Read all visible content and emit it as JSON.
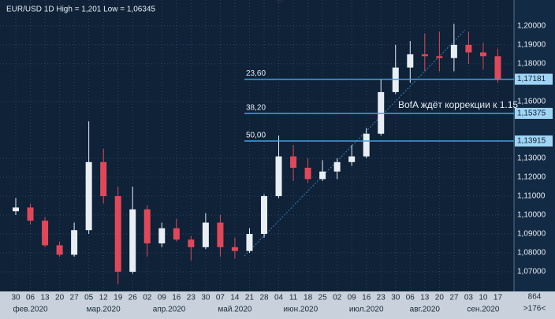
{
  "chart_data": {
    "type": "candlestick",
    "title": "EUR/USD 1D High = 1,201 Low = 1,06345",
    "annotation": "BofA ждёт коррекции к 1.15",
    "categories": [
      "30",
      "06",
      "13",
      "20",
      "27",
      "05",
      "12",
      "19",
      "26",
      "02",
      "09",
      "16",
      "23",
      "30",
      "07",
      "14",
      "21",
      "28",
      "04",
      "11",
      "18",
      "25",
      "02",
      "09",
      "16",
      "23",
      "30",
      "06",
      "13",
      "20",
      "27",
      "03",
      "10",
      "17"
    ],
    "months": [
      "фев.2020",
      "мар.2020",
      "апр.2020",
      "май.2020",
      "июн.2020",
      "июл.2020",
      "авг.2020",
      "сен.2020"
    ],
    "open": [
      1.102,
      1.104,
      1.097,
      1.084,
      1.079,
      1.092,
      1.128,
      1.11,
      1.07,
      1.103,
      1.085,
      1.093,
      1.087,
      1.083,
      1.096,
      1.083,
      1.081,
      1.09,
      1.11,
      1.131,
      1.125,
      1.119,
      1.123,
      1.128,
      1.131,
      1.143,
      1.165,
      1.178,
      1.185,
      1.184,
      1.183,
      1.19,
      1.186,
      1.184
    ],
    "high": [
      1.109,
      1.106,
      1.099,
      1.086,
      1.096,
      1.1495,
      1.135,
      1.115,
      1.115,
      1.105,
      1.096,
      1.098,
      1.089,
      1.101,
      1.1,
      1.088,
      1.093,
      1.111,
      1.142,
      1.137,
      1.13,
      1.129,
      1.13,
      1.137,
      1.146,
      1.172,
      1.19,
      1.192,
      1.196,
      1.197,
      1.2011,
      1.197,
      1.191,
      1.188
    ],
    "low": [
      1.1,
      1.095,
      1.083,
      1.078,
      1.078,
      1.09,
      1.106,
      1.0635,
      1.069,
      1.078,
      1.083,
      1.086,
      1.076,
      1.082,
      1.078,
      1.077,
      1.08,
      1.088,
      1.109,
      1.118,
      1.117,
      1.118,
      1.119,
      1.126,
      1.13,
      1.142,
      1.164,
      1.17,
      1.176,
      1.176,
      1.176,
      1.18,
      1.177,
      1.17
    ],
    "close": [
      1.104,
      1.097,
      1.084,
      1.079,
      1.092,
      1.128,
      1.11,
      1.07,
      1.103,
      1.085,
      1.093,
      1.087,
      1.083,
      1.096,
      1.083,
      1.081,
      1.09,
      1.11,
      1.131,
      1.125,
      1.119,
      1.123,
      1.128,
      1.131,
      1.143,
      1.165,
      1.178,
      1.185,
      1.184,
      1.183,
      1.19,
      1.186,
      1.184,
      1.1718
    ],
    "up_color": "#e8eef4",
    "down_color": "#e0485a",
    "fib_levels": [
      {
        "level": "23,60",
        "price": {
          "value": 1.17181,
          "label": "1,17181"
        }
      },
      {
        "level": "38,20",
        "price": {
          "value": 1.15375,
          "label": "1,15375"
        }
      },
      {
        "level": "50,00",
        "price": {
          "value": 1.13915,
          "label": "1,13915"
        }
      }
    ],
    "fib_color": "#3aa6e0",
    "ylim": [
      1.0596,
      1.2137
    ],
    "yticks": [
      {
        "value": 1.2,
        "label": "1,20000"
      },
      {
        "value": 1.19,
        "label": "1,19000"
      },
      {
        "value": 1.18,
        "label": "1,18000"
      },
      {
        "value": 1.16,
        "label": "1,16000"
      },
      {
        "value": 1.13,
        "label": "1,13000"
      },
      {
        "value": 1.12,
        "label": "1,12000"
      },
      {
        "value": 1.11,
        "label": "1,11000"
      },
      {
        "value": 1.1,
        "label": "1,10000"
      },
      {
        "value": 1.09,
        "label": "1,09000"
      },
      {
        "value": 1.08,
        "label": "1,08000"
      },
      {
        "value": 1.07,
        "label": "1,07000"
      }
    ],
    "grid": true,
    "corner_labels": [
      "864",
      ">176<"
    ]
  }
}
